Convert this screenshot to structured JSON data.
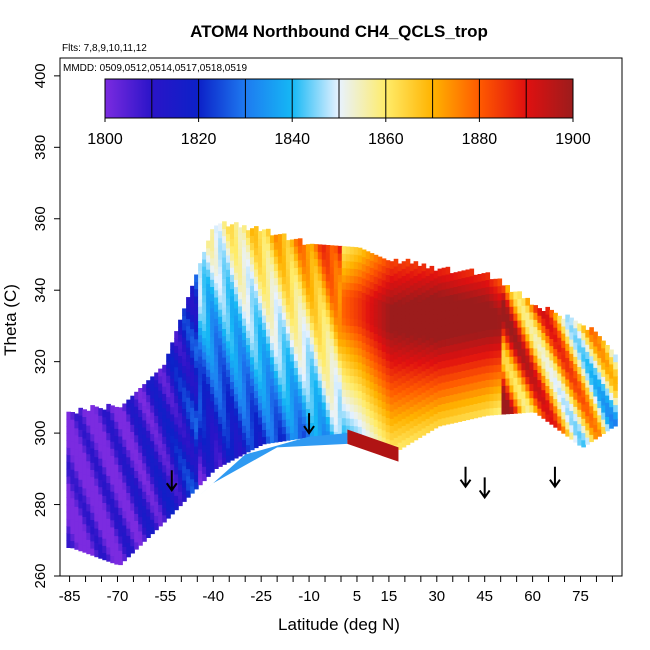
{
  "chart_data": {
    "type": "heatmap",
    "title": "ATOM4 Northbound CH4_QCLS_trop",
    "subtitle_flights": "Flts: 7,8,9,10,11,12",
    "subtitle_dates": "MMDD: 0509,0512,0514,0517,0518,0519",
    "xlabel": "Latitude (deg N)",
    "ylabel": "Theta (C)",
    "xlim": [
      -88,
      88
    ],
    "ylim": [
      260,
      405
    ],
    "x_tick_labels": [
      "-85",
      "-70",
      "-55",
      "-40",
      "-25",
      "-10",
      "5",
      "15",
      "30",
      "45",
      "60",
      "75"
    ],
    "x_tick_values": [
      -85,
      -70,
      -55,
      -40,
      -25,
      -10,
      5,
      15,
      30,
      45,
      60,
      75
    ],
    "x_minor_ticks": [
      -85,
      -80,
      -75,
      -70,
      -65,
      -60,
      -55,
      -50,
      -45,
      -40,
      -35,
      -30,
      -25,
      -20,
      -15,
      -10,
      -5,
      0,
      5,
      10,
      15,
      20,
      25,
      30,
      35,
      40,
      45,
      50,
      55,
      60,
      65,
      70,
      75,
      80,
      85
    ],
    "y_tick_labels": [
      "260",
      "280",
      "300",
      "320",
      "340",
      "360",
      "380",
      "400"
    ],
    "y_tick_values": [
      260,
      280,
      300,
      320,
      340,
      360,
      380,
      400
    ],
    "colorbar": {
      "range": [
        1800,
        1900
      ],
      "tick_labels": [
        "1800",
        "1820",
        "1840",
        "1860",
        "1880",
        "1900"
      ],
      "tick_values": [
        1800,
        1820,
        1840,
        1860,
        1880,
        1900
      ],
      "divisions": [
        1810,
        1820,
        1830,
        1840,
        1850,
        1860,
        1870,
        1880,
        1890
      ]
    },
    "arrows": [
      {
        "lat": -53,
        "theta": 284
      },
      {
        "lat": -10,
        "theta": 300
      },
      {
        "lat": 39,
        "theta": 285
      },
      {
        "lat": 45,
        "theta": 282
      },
      {
        "lat": 67,
        "theta": 285
      }
    ],
    "field_summary": {
      "description_lat": [
        -85,
        -70,
        -55,
        -40,
        -25,
        -10,
        5,
        15,
        30,
        45,
        60,
        75,
        85
      ],
      "top_theta": [
        305,
        307,
        320,
        358,
        356,
        352,
        350,
        348,
        345,
        344,
        335,
        330,
        322
      ],
      "bottom_theta": [
        268,
        263,
        276,
        290,
        297,
        299,
        298,
        294,
        302,
        305,
        306,
        296,
        302
      ],
      "ch4_midlevel": [
        1805,
        1808,
        1815,
        1830,
        1842,
        1852,
        1870,
        1885,
        1890,
        1888,
        1875,
        1862,
        1850
      ]
    }
  }
}
